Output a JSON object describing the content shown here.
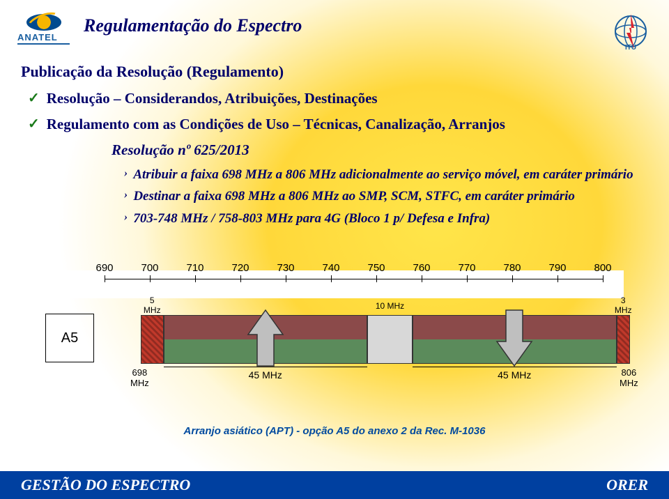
{
  "title": "Regulamentação do Espectro",
  "subtitle": "Publicação da Resolução (Regulamento)",
  "bullets": [
    "Resolução – Considerandos, Atribuições, Destinações",
    "Regulamento com as Condições de Uso – Técnicas, Canalização, Arranjos"
  ],
  "resolution_title": "Resolução nº 625/2013",
  "sub_bullets": [
    "Atribuir a faixa 698 MHz a 806 MHz adicionalmente ao serviço móvel, em caráter primário",
    "Destinar a faixa 698 MHz a 806 MHz ao SMP, SCM, STFC, em caráter primário",
    "703-748 MHz / 758-803 MHz para 4G (Bloco 1 p/ Defesa e Infra)"
  ],
  "diagram": {
    "label_a5": "A5",
    "ticks": [
      690,
      700,
      710,
      720,
      730,
      740,
      750,
      760,
      770,
      780,
      790,
      800
    ],
    "range": [
      690,
      800
    ],
    "edge_left_val": "698",
    "edge_right_val": "806",
    "edge_unit": "MHz",
    "band5_width_label": "5\nMHz",
    "band3_width_label": "3\nMHz",
    "gap_label": "10 MHz",
    "pair_width_label": "45 MHz",
    "band5": {
      "start": 698,
      "end": 703,
      "color": "#b03a2e"
    },
    "pair_up": {
      "start": 703,
      "end": 748
    },
    "gap": {
      "start": 748,
      "end": 758,
      "color": "#d8d8d8"
    },
    "pair_down": {
      "start": 758,
      "end": 803
    },
    "band3": {
      "start": 803,
      "end": 806,
      "color": "#b03a2e"
    },
    "arrow_fill": "#bfbfbf",
    "arrow_stroke": "#333333"
  },
  "caption": "Arranjo asiático (APT) -  opção A5 do anexo 2 da Rec. M-1036",
  "footer_left": "GESTÃO DO ESPECTRO",
  "footer_right": "ORER",
  "logos": {
    "anatel_text": "ANATEL"
  }
}
